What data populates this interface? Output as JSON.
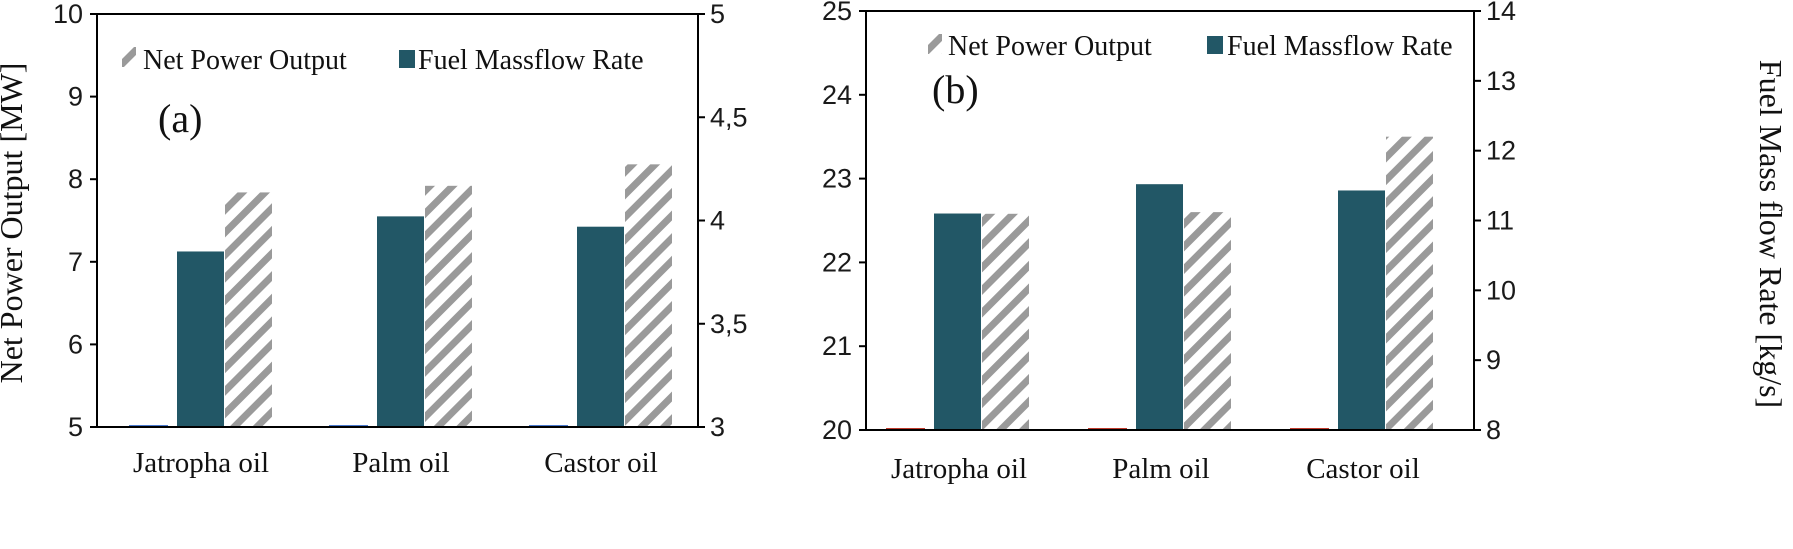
{
  "colors": {
    "mass_flow_bar": "#225766",
    "power_hatch": "#9a9a9a",
    "axis": "#000000"
  },
  "chart_data": [
    {
      "type": "bar",
      "panel_label": "(a)",
      "categories": [
        "Jatropha oil",
        "Palm oil",
        "Castor oil"
      ],
      "ylabel": "Net Power Output [MW]",
      "ylabel_right": "",
      "ylim": [
        5,
        10
      ],
      "yticks": [
        "5",
        "6",
        "7",
        "8",
        "9",
        "10"
      ],
      "ylim_right": [
        3,
        5
      ],
      "yticks_right": [
        "3",
        "3,5",
        "4",
        "4,5",
        "5"
      ],
      "legend": [
        "Net Power Output",
        "Fuel Massflow Rate"
      ],
      "legend_position": "top",
      "grid": false,
      "series": [
        {
          "name": "Fuel Massflow Rate",
          "axis": "right",
          "style": "solid",
          "values": [
            3.85,
            4.02,
            3.97
          ]
        },
        {
          "name": "Net Power Output",
          "axis": "left",
          "style": "hatched",
          "values": [
            7.84,
            7.92,
            8.18
          ]
        }
      ]
    },
    {
      "type": "bar",
      "panel_label": "(b)",
      "categories": [
        "Jatropha oil",
        "Palm oil",
        "Castor oil"
      ],
      "ylabel": "",
      "ylabel_right": "Fuel Mass flow Rate [kg/s]",
      "ylim": [
        20,
        25
      ],
      "yticks": [
        "20",
        "21",
        "22",
        "23",
        "24",
        "25"
      ],
      "ylim_right": [
        8,
        14
      ],
      "yticks_right": [
        "8",
        "9",
        "10",
        "11",
        "12",
        "13",
        "14"
      ],
      "legend": [
        "Net Power Output",
        "Fuel Massflow Rate"
      ],
      "legend_position": "top",
      "grid": false,
      "series": [
        {
          "name": "Fuel Massflow Rate",
          "axis": "right",
          "style": "solid",
          "values": [
            11.1,
            11.52,
            11.43
          ]
        },
        {
          "name": "Net Power Output",
          "axis": "left",
          "style": "hatched",
          "values": [
            22.58,
            22.6,
            23.5
          ]
        }
      ]
    }
  ]
}
